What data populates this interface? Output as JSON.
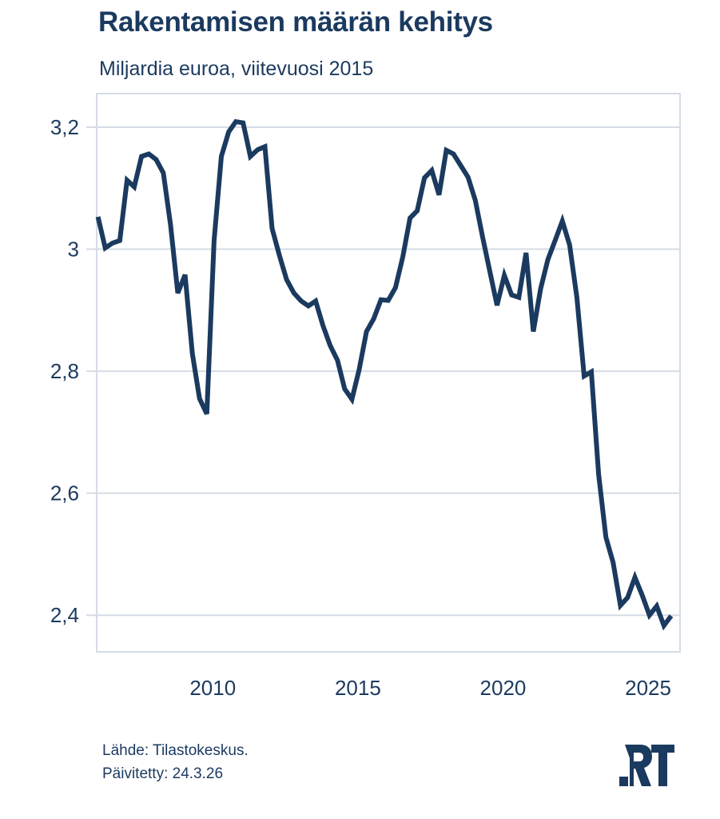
{
  "header": {
    "title": "Rakentamisen määrän kehitys",
    "subtitle": "Miljardia euroa, viitevuosi 2015"
  },
  "footer": {
    "source": "Lähde: Tilastokeskus.",
    "updated": "Päivitetty: 24.3.26",
    "logo": "RT"
  },
  "colors": {
    "line": "#1b3a5f",
    "grid": "#d5dce6",
    "text": "#1b3a5f"
  },
  "chart_data": {
    "type": "line",
    "title": "Rakentamisen määrän kehitys",
    "subtitle": "Miljardia euroa, viitevuosi 2015",
    "xlabel": "",
    "ylabel": "",
    "xlim": [
      2006.0,
      2026.1
    ],
    "ylim": [
      2.34,
      3.255
    ],
    "grid": true,
    "legend": "none",
    "xticks": [
      {
        "value": 2010,
        "label": "2010"
      },
      {
        "value": 2015,
        "label": "2015"
      },
      {
        "value": 2020,
        "label": "2020"
      },
      {
        "value": 2025,
        "label": "2025"
      }
    ],
    "yticks": [
      {
        "value": 2.4,
        "label": "2,4"
      },
      {
        "value": 2.6,
        "label": "2,6"
      },
      {
        "value": 2.8,
        "label": "2,8"
      },
      {
        "value": 3.0,
        "label": "3"
      },
      {
        "value": 3.2,
        "label": "3,2"
      }
    ],
    "series": [
      {
        "name": "Rakentamisen määrä",
        "x_start": 2006.0,
        "x_step": 0.25,
        "values": [
          3.053,
          3.002,
          3.01,
          3.014,
          3.113,
          3.102,
          3.152,
          3.156,
          3.147,
          3.125,
          3.04,
          2.928,
          2.958,
          2.829,
          2.755,
          2.73,
          3.014,
          3.152,
          3.192,
          3.209,
          3.207,
          3.152,
          3.163,
          3.168,
          3.034,
          2.99,
          2.95,
          2.928,
          2.915,
          2.907,
          2.915,
          2.875,
          2.842,
          2.818,
          2.771,
          2.754,
          2.803,
          2.865,
          2.886,
          2.917,
          2.916,
          2.937,
          2.987,
          3.051,
          3.063,
          3.117,
          3.129,
          3.089,
          3.162,
          3.156,
          3.137,
          3.118,
          3.08,
          3.02,
          2.964,
          2.908,
          2.957,
          2.925,
          2.921,
          2.994,
          2.865,
          2.935,
          2.983,
          3.014,
          3.046,
          3.007,
          2.921,
          2.792,
          2.799,
          2.631,
          2.528,
          2.486,
          2.416,
          2.429,
          2.462,
          2.433,
          2.4,
          2.415,
          2.383,
          2.399
        ]
      }
    ]
  }
}
